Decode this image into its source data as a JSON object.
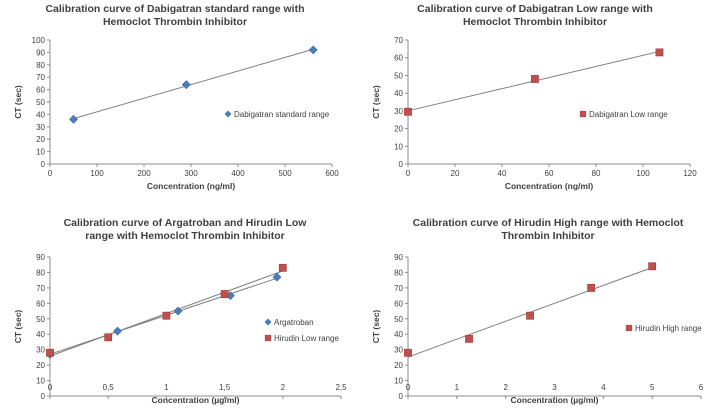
{
  "colors": {
    "blue": "#4a7ebb",
    "red": "#c0504d",
    "line": "#7f7f7f",
    "axis": "#8c8c8c"
  },
  "chart_data": [
    {
      "type": "scatter",
      "title": [
        "Calibration curve of Dabigatran standard range with",
        "Hemoclot Thrombin Inhibitor"
      ],
      "xlabel": "Concentration (ng/ml)",
      "ylabel": "CT (sec)",
      "xlim": [
        0,
        600
      ],
      "xstep": 100,
      "ylim": [
        0,
        100
      ],
      "ystep": 10,
      "xticks": [
        "0",
        "100",
        "200",
        "300",
        "400",
        "500",
        "600"
      ],
      "yticks": [
        "0",
        "10",
        "20",
        "30",
        "40",
        "50",
        "60",
        "70",
        "80",
        "90",
        "100"
      ],
      "legend_position": "right",
      "series": [
        {
          "name": "Dabigatran standard range",
          "marker": "diamond",
          "color": "#4a7ebb",
          "x": [
            50,
            290,
            560
          ],
          "y": [
            36,
            64,
            92
          ]
        }
      ]
    },
    {
      "type": "scatter",
      "title": [
        "Calibration curve of Dabigatran Low range with",
        "Hemoclot Thrombin Inhibitor"
      ],
      "xlabel": "Concentration (ng/ml)",
      "ylabel": "CT (sec)",
      "xlim": [
        0,
        120
      ],
      "xstep": 20,
      "ylim": [
        0,
        70
      ],
      "ystep": 10,
      "xticks": [
        "0",
        "20",
        "40",
        "60",
        "80",
        "100",
        "120"
      ],
      "yticks": [
        "0",
        "10",
        "20",
        "30",
        "40",
        "50",
        "60",
        "70"
      ],
      "legend_position": "right",
      "series": [
        {
          "name": "Dabigatran Low range",
          "marker": "square",
          "color": "#c0504d",
          "x": [
            0,
            54,
            107
          ],
          "y": [
            29.5,
            48,
            63
          ]
        }
      ]
    },
    {
      "type": "scatter",
      "title": [
        "Calibration curve of Argatroban and Hirudin Low",
        "range with Hemoclot Thrombin Inhibitor"
      ],
      "xlabel": "Concentration (µg/ml)",
      "ylabel": "CT (sec)",
      "xlim": [
        0,
        2.5
      ],
      "xstep": 0.5,
      "ylim": [
        0,
        90
      ],
      "ystep": 10,
      "xticks": [
        "0",
        "0,5",
        "1",
        "1,5",
        "2",
        "2,5"
      ],
      "yticks": [
        "0",
        "10",
        "20",
        "30",
        "40",
        "50",
        "60",
        "70",
        "80",
        "90"
      ],
      "legend_position": "right",
      "series": [
        {
          "name": "Argatroban",
          "marker": "diamond",
          "color": "#4a7ebb",
          "x": [
            0,
            0.58,
            1.1,
            1.55,
            1.95
          ],
          "y": [
            27,
            42,
            55,
            65,
            77
          ]
        },
        {
          "name": "Hirudin Low range",
          "marker": "square",
          "color": "#c0504d",
          "x": [
            0,
            0.5,
            1,
            1.5,
            2
          ],
          "y": [
            28,
            38,
            52,
            66,
            83
          ]
        }
      ]
    },
    {
      "type": "scatter",
      "title": [
        "Calibration curve of Hirudin High range with Hemoclot",
        "Thrombin Inhibitor"
      ],
      "xlabel": "Concentration (µg/ml)",
      "ylabel": "CT (sec)",
      "xlim": [
        0,
        6
      ],
      "xstep": 1,
      "ylim": [
        0,
        90
      ],
      "ystep": 10,
      "xticks": [
        "0",
        "1",
        "2",
        "3",
        "4",
        "5",
        "6"
      ],
      "yticks": [
        "0",
        "10",
        "20",
        "30",
        "40",
        "50",
        "60",
        "70",
        "80",
        "90"
      ],
      "legend_position": "right",
      "series": [
        {
          "name": "Hirudin High range",
          "marker": "square",
          "color": "#c0504d",
          "x": [
            0,
            1.25,
            2.5,
            3.75,
            5
          ],
          "y": [
            28,
            37,
            52,
            70,
            84
          ]
        }
      ]
    }
  ]
}
